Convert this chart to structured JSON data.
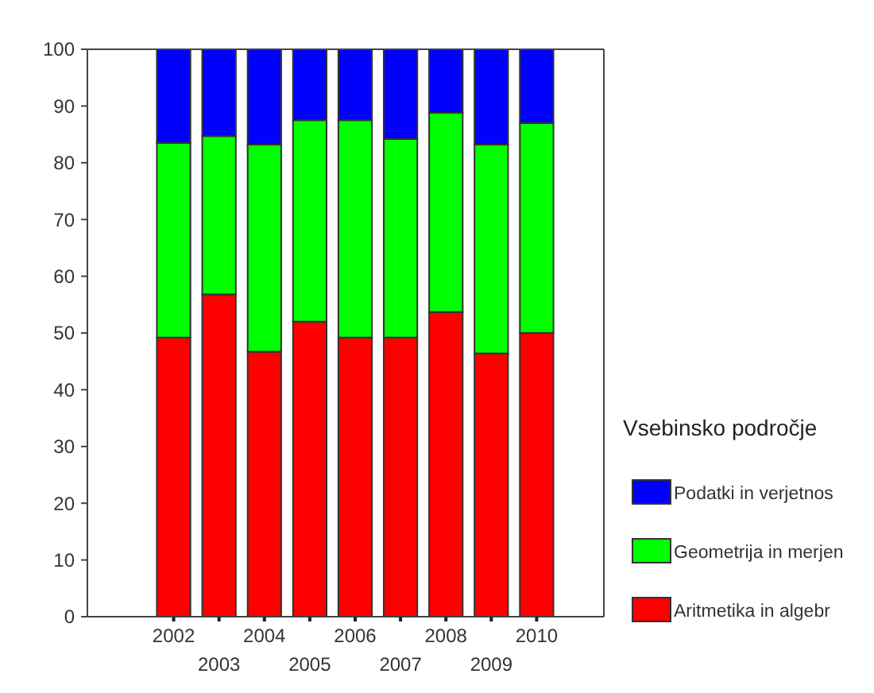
{
  "chart_data": {
    "type": "bar",
    "stacked": true,
    "legend_title": "Vsebinsko področje",
    "legend": "right",
    "categories": [
      "2002",
      "2003",
      "2004",
      "2005",
      "2006",
      "2007",
      "2008",
      "2009",
      "2010"
    ],
    "series": [
      {
        "name": "Aritmetika in algebr",
        "color": "#ff0000",
        "values": [
          49.2,
          56.8,
          46.7,
          52.0,
          49.2,
          49.2,
          53.7,
          46.4,
          50.0
        ]
      },
      {
        "name": "Geometrija in merjen",
        "color": "#00ff00",
        "values": [
          34.3,
          27.9,
          36.5,
          35.5,
          38.3,
          35.0,
          35.1,
          36.8,
          37.0
        ]
      },
      {
        "name": "Podatki in verjetnos",
        "color": "#0000ff",
        "values": [
          16.5,
          15.3,
          16.8,
          12.5,
          12.5,
          15.8,
          11.2,
          16.8,
          13.0
        ]
      }
    ],
    "ylim": [
      0,
      100
    ],
    "yticks": [
      0,
      10,
      20,
      30,
      40,
      50,
      60,
      70,
      80,
      90,
      100
    ]
  }
}
